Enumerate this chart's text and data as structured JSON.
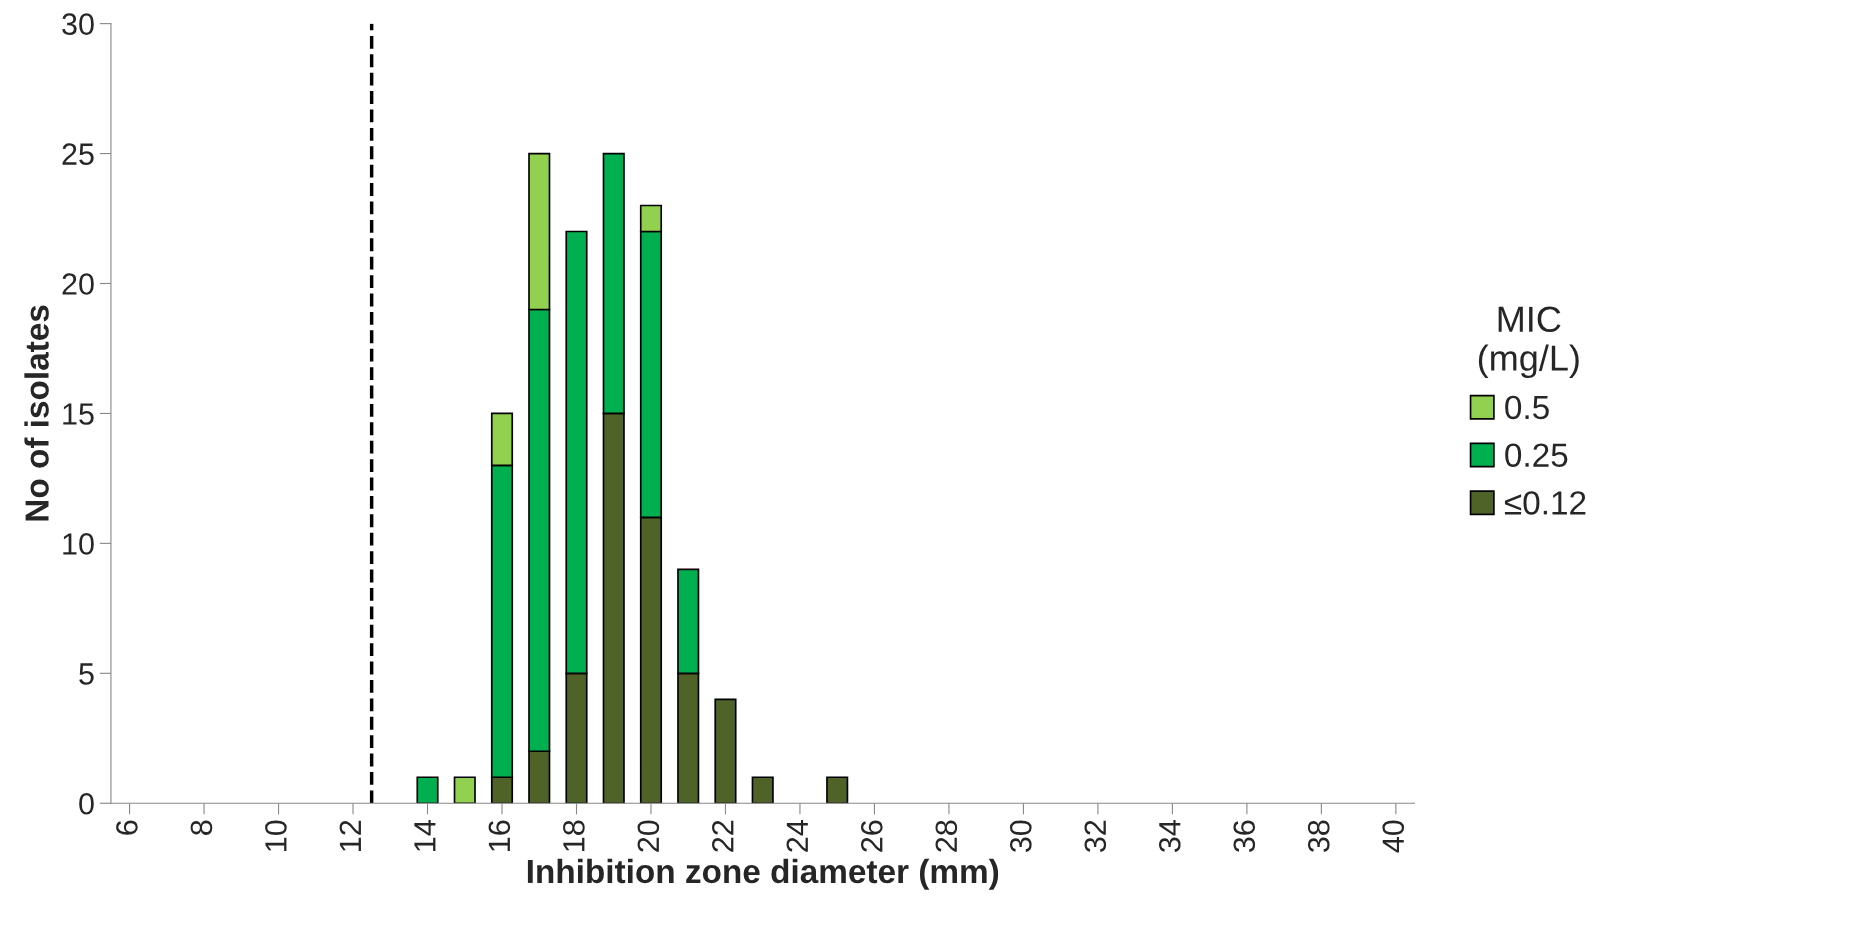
{
  "chart_data": {
    "type": "bar",
    "stacked": true,
    "xlabel": "Inhibition zone diameter (mm)",
    "ylabel": "No of isolates",
    "legend_title": "MIC\n(mg/L)",
    "legend": "right",
    "x": [
      14,
      15,
      16,
      17,
      18,
      19,
      20,
      21,
      22,
      23,
      24,
      25
    ],
    "series": [
      {
        "name": "≤0.12",
        "color": "#4f6228",
        "values": [
          null,
          null,
          1,
          2,
          5,
          15,
          11,
          5,
          4,
          1,
          null,
          1
        ]
      },
      {
        "name": "0.25",
        "color": "#00b050",
        "values": [
          1,
          null,
          12,
          17,
          17,
          10,
          11,
          4,
          null,
          null,
          null,
          null
        ]
      },
      {
        "name": "0.5",
        "color": "#92d050",
        "values": [
          null,
          1,
          2,
          6,
          null,
          null,
          1,
          null,
          null,
          null,
          null,
          null
        ]
      }
    ],
    "xlim": [
      5.5,
      40.5
    ],
    "xticks": [
      6,
      8,
      10,
      12,
      14,
      16,
      18,
      20,
      22,
      24,
      26,
      28,
      30,
      32,
      34,
      36,
      38,
      40
    ],
    "ylim": [
      0,
      30
    ],
    "yticks": [
      0,
      5,
      10,
      15,
      20,
      25,
      30
    ],
    "grid": false,
    "ref_lines": [
      {
        "axis": "x",
        "value": 12.5,
        "color": "#000000",
        "line_style": "dashed"
      }
    ]
  }
}
